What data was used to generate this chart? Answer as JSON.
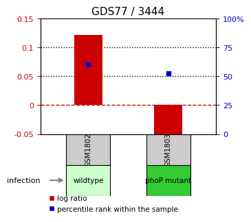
{
  "title": "GDS77 / 3444",
  "samples": [
    "GSM1802",
    "GSM1803"
  ],
  "groups": [
    "wildtype",
    "phoP mutant"
  ],
  "log_ratios": [
    0.121,
    -0.065
  ],
  "percentile_ranks": [
    0.071,
    0.055
  ],
  "ylim_left": [
    -0.05,
    0.15
  ],
  "ylim_right": [
    0,
    100
  ],
  "yticks_left": [
    -0.05,
    0,
    0.05,
    0.1,
    0.15
  ],
  "ytick_labels_left": [
    "-0.05",
    "0",
    "0.05",
    "0.1",
    "0.15"
  ],
  "yticks_right": [
    0,
    25,
    50,
    75,
    100
  ],
  "ytick_labels_right": [
    "0",
    "25",
    "50",
    "75",
    "100%"
  ],
  "hlines_dotted": [
    0.1,
    0.05
  ],
  "hline_dashed_red": 0,
  "bar_color": "#cc0000",
  "square_color": "#0000cc",
  "group_colors": [
    "#ccffcc",
    "#33cc33"
  ],
  "sample_box_color": "#cccccc",
  "bar_width": 0.35,
  "legend_labels": [
    "log ratio",
    "percentile rank within the sample"
  ]
}
